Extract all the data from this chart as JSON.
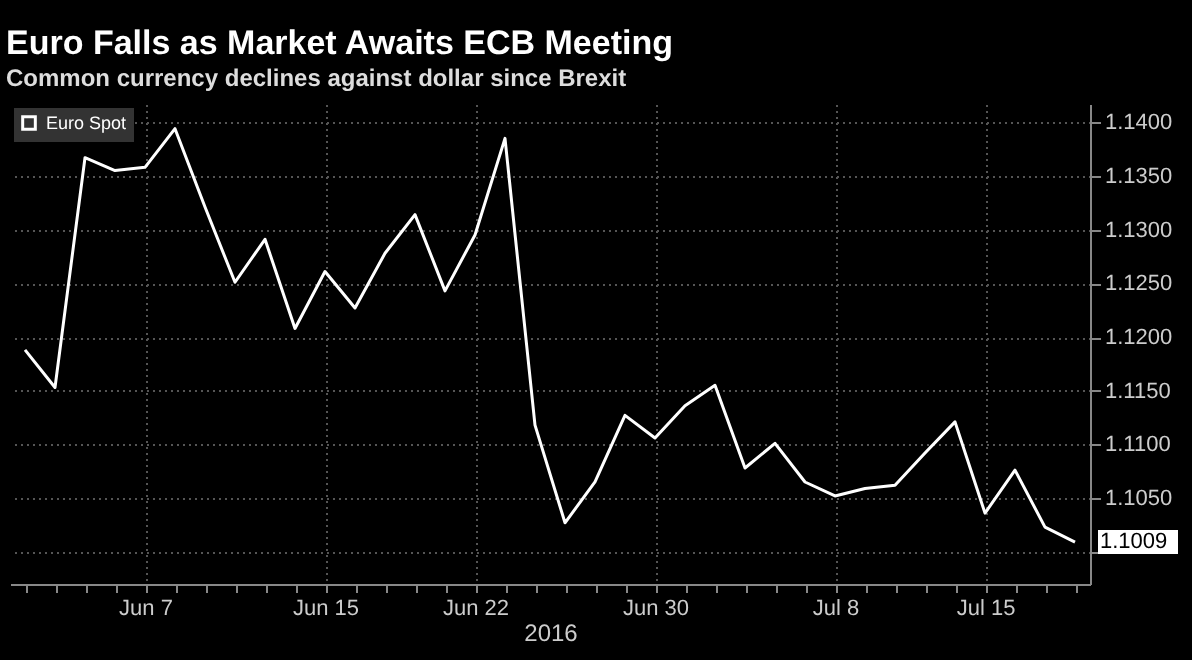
{
  "chart_data": {
    "type": "line",
    "title": "Euro Falls as Market Awaits ECB Meeting",
    "subtitle": "Common currency declines against dollar since Brexit",
    "xlabel": "2016",
    "categories": [
      null,
      null,
      null,
      null,
      "Jun 7",
      null,
      null,
      null,
      null,
      null,
      "Jun 15",
      null,
      null,
      null,
      null,
      "Jun 22",
      null,
      null,
      null,
      null,
      null,
      "Jun 30",
      null,
      null,
      null,
      null,
      null,
      "Jul 8",
      null,
      null,
      null,
      null,
      "Jul 15",
      null,
      null,
      null
    ],
    "series": [
      {
        "name": "Euro Spot",
        "color": "#ffffff",
        "values": [
          1.1188,
          1.1153,
          1.1367,
          1.1355,
          1.1358,
          1.1394,
          1.1321,
          1.1251,
          1.1291,
          1.1208,
          1.1261,
          1.1227,
          1.1278,
          1.1314,
          1.1243,
          1.1295,
          1.1385,
          1.1118,
          1.1027,
          1.1065,
          1.1127,
          1.1106,
          1.1136,
          1.1155,
          1.1078,
          1.1101,
          1.1065,
          1.1052,
          1.1059,
          1.1062,
          1.1092,
          1.1121,
          1.1036,
          1.1076,
          1.1023,
          1.1009
        ]
      }
    ],
    "ylim": [
      1.097,
      1.1417
    ],
    "yticks": [
      {
        "value": 1.1,
        "label": null
      },
      {
        "value": 1.105,
        "label": "1.1050"
      },
      {
        "value": 1.11,
        "label": "1.1100"
      },
      {
        "value": 1.115,
        "label": "1.1150"
      },
      {
        "value": 1.12,
        "label": "1.1200"
      },
      {
        "value": 1.125,
        "label": "1.1250"
      },
      {
        "value": 1.13,
        "label": "1.1300"
      },
      {
        "value": 1.135,
        "label": "1.1350"
      },
      {
        "value": 1.14,
        "label": "1.1400"
      }
    ],
    "annotations": [
      "1.1009"
    ],
    "grid": true,
    "legend": "top left",
    "marker": "none",
    "line_style": "solid"
  }
}
